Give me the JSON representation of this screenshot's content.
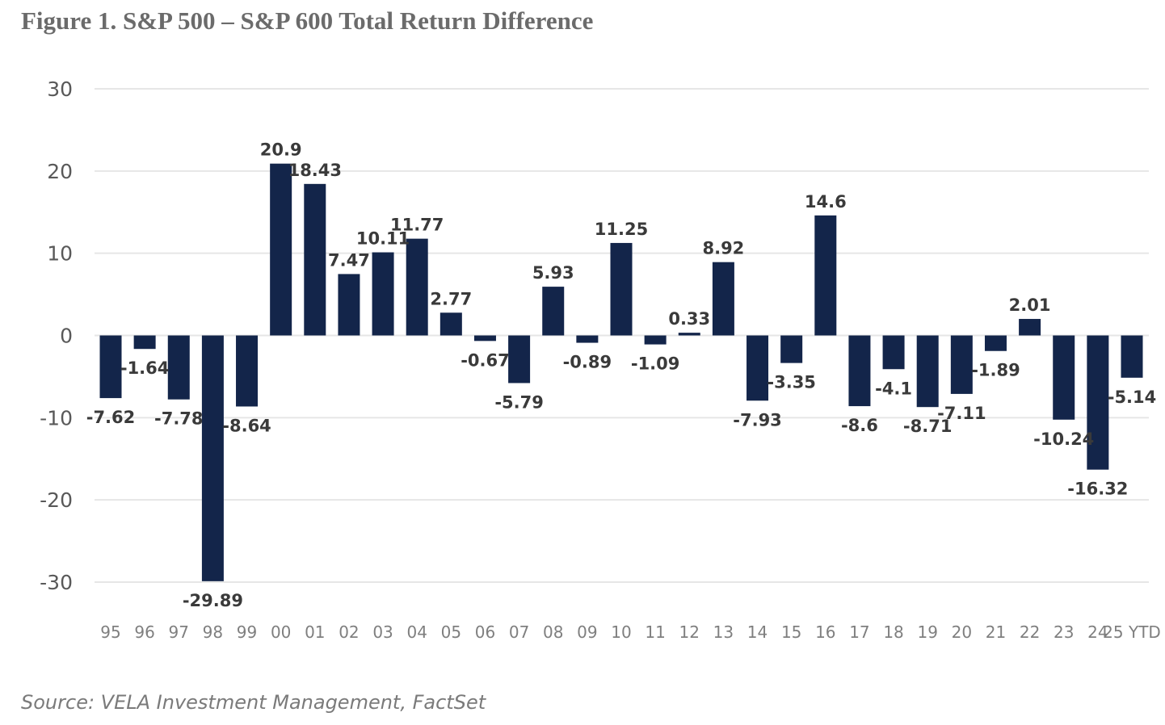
{
  "header": {
    "title": "Figure 1. S&P 500 – S&P 600 Total Return Difference"
  },
  "footer": {
    "source": "Source: VELA Investment Management, FactSet"
  },
  "colors": {
    "bar": "#13254a",
    "grid": "#e6e6e6"
  },
  "chart_data": {
    "type": "bar",
    "title": "",
    "xlabel": "",
    "ylabel": "",
    "ylim": [
      -30,
      30
    ],
    "yticks": [
      30,
      20,
      10,
      0,
      -10,
      -20,
      -30
    ],
    "grid": true,
    "legend": "none",
    "categories": [
      "95",
      "96",
      "97",
      "98",
      "99",
      "00",
      "01",
      "02",
      "03",
      "04",
      "05",
      "06",
      "07",
      "08",
      "09",
      "10",
      "11",
      "12",
      "13",
      "14",
      "15",
      "16",
      "17",
      "18",
      "19",
      "20",
      "21",
      "22",
      "23",
      "24",
      "25 YTD"
    ],
    "values": [
      -7.62,
      -1.64,
      -7.78,
      -29.89,
      -8.64,
      20.9,
      18.43,
      7.47,
      10.11,
      11.77,
      2.77,
      -0.67,
      -5.79,
      5.93,
      -0.89,
      11.25,
      -1.09,
      0.33,
      8.92,
      -7.93,
      -3.35,
      14.6,
      -8.6,
      -4.1,
      -8.71,
      -7.11,
      -1.89,
      2.01,
      -10.24,
      -16.32,
      -5.14
    ],
    "data_labels": [
      "-7.62",
      "-1.64",
      "-7.78",
      "-29.89",
      "-8.64",
      "20.9",
      "18.43",
      "7.47",
      "10.11",
      "11.77",
      "2.77",
      "-0.67",
      "-5.79",
      "5.93",
      "-0.89",
      "11.25",
      "-1.09",
      "0.33",
      "8.92",
      "-7.93",
      "-3.35",
      "14.6",
      "-8.6",
      "-4.1",
      "-8.71",
      "-7.11",
      "-1.89",
      "2.01",
      "-10.24",
      "-16.32",
      "-5.14"
    ]
  }
}
